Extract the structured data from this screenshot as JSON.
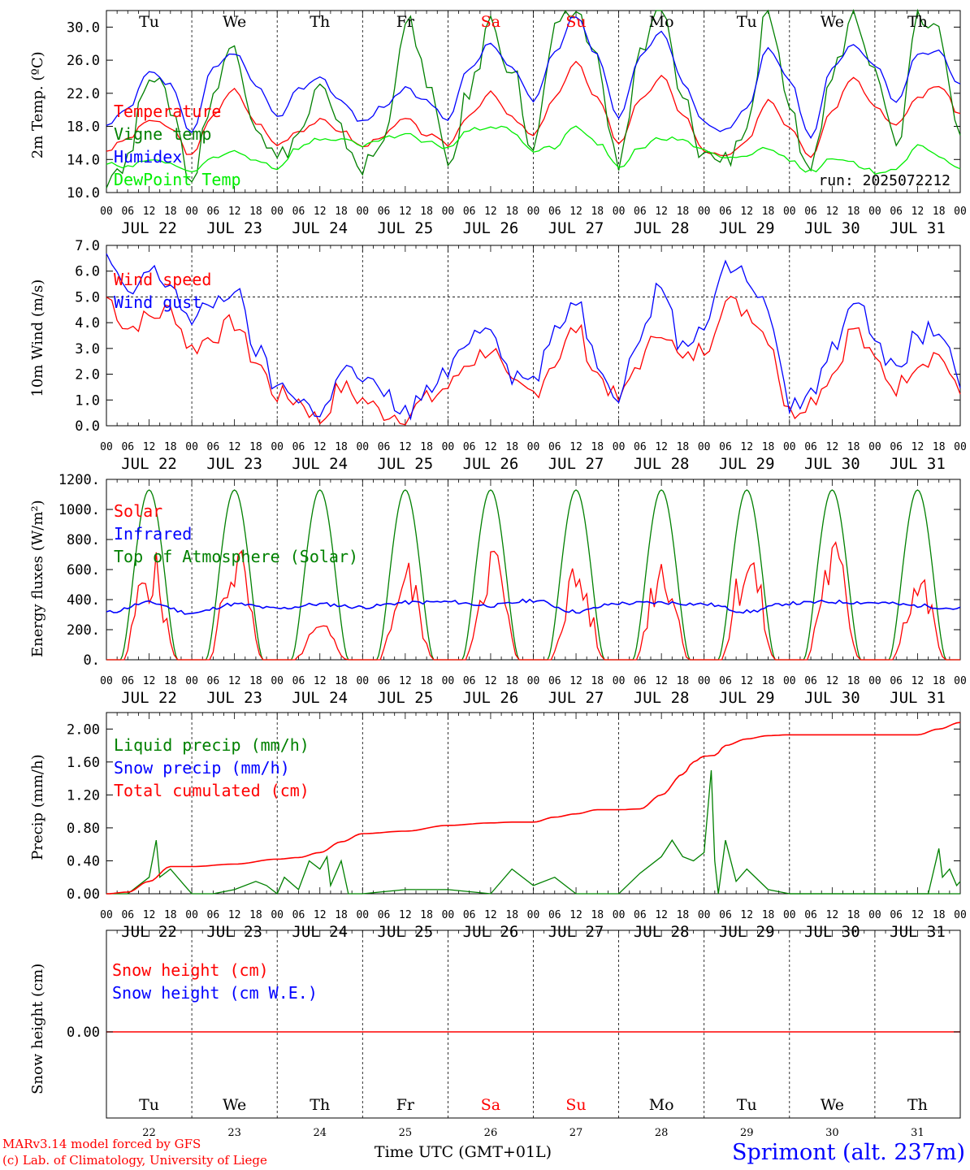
{
  "run_label": "run: 2025072212",
  "weekdays": [
    "Tu",
    "We",
    "Th",
    "Fr",
    "Sa",
    "Su",
    "Mo",
    "Tu",
    "We",
    "Th"
  ],
  "weekday_colors": [
    "#000000",
    "#000000",
    "#000000",
    "#000000",
    "#ff0000",
    "#ff0000",
    "#000000",
    "#000000",
    "#000000",
    "#000000"
  ],
  "date_labels": [
    "JUL 22",
    "JUL 23",
    "JUL 24",
    "JUL 25",
    "JUL 26",
    "JUL 27",
    "JUL 28",
    "JUL 29",
    "JUL 30",
    "JUL 31"
  ],
  "day_numbers": [
    "22",
    "23",
    "24",
    "25",
    "26",
    "27",
    "28",
    "29",
    "30",
    "31"
  ],
  "hour_labels": [
    "00",
    "06",
    "12",
    "18"
  ],
  "final_hour_label": "00",
  "footer": {
    "credit_line1": "MARv3.14 model forced by GFS",
    "credit_line2": "(c) Lab. of Climatology, University of Liege",
    "time_label": "Time UTC (GMT+01L)",
    "station": "Sprimont (alt. 237m)"
  },
  "chart_data": [
    {
      "type": "line",
      "ylabel": "2m Temp. (ºC)",
      "ylim": [
        10,
        32
      ],
      "yticks": [
        "10.0",
        "14.0",
        "18.0",
        "22.0",
        "26.0",
        "30.0"
      ],
      "ytick_values": [
        10,
        14,
        18,
        22,
        26,
        30
      ],
      "x_unit": "hours since JUL 22 00 UTC",
      "x": [
        0,
        6,
        12,
        18,
        24,
        30,
        36,
        42,
        48,
        54,
        60,
        66,
        72,
        78,
        84,
        90,
        96,
        102,
        108,
        114,
        120,
        126,
        132,
        138,
        144,
        150,
        156,
        162,
        168,
        174,
        180,
        186,
        192,
        198,
        204,
        210,
        216,
        222,
        228,
        234,
        240
      ],
      "series": [
        {
          "name": "Temperature",
          "color": "#ff0000",
          "values": [
            15.1,
            16.5,
            18.8,
            17.8,
            14.4,
            19.5,
            22.4,
            18.5,
            15.8,
            17.5,
            18.7,
            17.5,
            15.5,
            17.0,
            18.9,
            17.0,
            15.8,
            19.5,
            22.0,
            19.0,
            16.8,
            21.5,
            25.6,
            21.5,
            16.0,
            21.0,
            24.0,
            19.5,
            15.0,
            14.3,
            16.0,
            21.3,
            18.0,
            14.5,
            20.0,
            24.2,
            20.5,
            18.0,
            21.5,
            23.0,
            19.5
          ]
        },
        {
          "name": "Vigne temp",
          "color": "#008000",
          "values": [
            12.0,
            14.0,
            25.0,
            20.5,
            11.5,
            22.0,
            28.0,
            18.5,
            14.0,
            17.0,
            22.5,
            17.0,
            13.0,
            16.0,
            31.0,
            24.0,
            13.0,
            22.0,
            30.5,
            25.0,
            15.0,
            29.0,
            32.0,
            26.0,
            13.0,
            27.0,
            32.0,
            21.0,
            14.5,
            14.0,
            18.0,
            32.0,
            19.0,
            13.0,
            24.0,
            32.0,
            26.0,
            15.5,
            32.0,
            30.0,
            18.0
          ]
        },
        {
          "name": "Humidex",
          "color": "#0000ff",
          "values": [
            18.0,
            20.0,
            24.5,
            23.0,
            17.0,
            25.0,
            27.0,
            23.0,
            19.0,
            22.5,
            24.0,
            21.0,
            18.5,
            20.5,
            22.5,
            21.0,
            19.0,
            25.0,
            28.0,
            25.0,
            21.0,
            27.0,
            31.5,
            26.5,
            19.0,
            26.5,
            29.5,
            23.5,
            18.5,
            17.5,
            20.0,
            27.5,
            23.5,
            16.5,
            25.0,
            28.0,
            25.5,
            21.0,
            26.5,
            27.0,
            23.0
          ]
        },
        {
          "name": "DewPoint Temp",
          "color": "#00ee00",
          "values": [
            13.5,
            13.0,
            14.0,
            13.5,
            12.5,
            14.0,
            15.0,
            14.0,
            13.0,
            15.5,
            16.5,
            16.5,
            15.5,
            16.5,
            17.0,
            16.0,
            15.5,
            17.5,
            18.0,
            17.5,
            15.0,
            15.5,
            18.0,
            16.0,
            13.0,
            15.5,
            16.5,
            16.5,
            15.0,
            14.0,
            14.5,
            15.5,
            14.0,
            12.5,
            14.0,
            13.5,
            12.5,
            13.0,
            15.5,
            14.5,
            13.0
          ]
        }
      ]
    },
    {
      "type": "line",
      "ylabel": "10m Wind (m/s)",
      "ylim": [
        0,
        7
      ],
      "yticks": [
        "0.0",
        "1.0",
        "2.0",
        "3.0",
        "4.0",
        "5.0",
        "6.0",
        "7.0"
      ],
      "ytick_values": [
        0,
        1,
        2,
        3,
        4,
        5,
        6,
        7
      ],
      "reference_line": 5.0,
      "x_unit": "hours since JUL 22 00 UTC",
      "x": [
        0,
        6,
        12,
        18,
        24,
        30,
        36,
        42,
        48,
        54,
        60,
        66,
        72,
        78,
        84,
        90,
        96,
        102,
        108,
        114,
        120,
        126,
        132,
        138,
        144,
        150,
        156,
        162,
        168,
        174,
        180,
        186,
        192,
        198,
        204,
        210,
        216,
        222,
        228,
        234,
        240
      ],
      "series": [
        {
          "name": "Wind speed",
          "color": "#ff0000",
          "values": [
            5.0,
            3.8,
            4.2,
            4.5,
            3.0,
            3.5,
            4.0,
            2.5,
            1.2,
            1.0,
            0.2,
            1.5,
            1.0,
            0.5,
            0.4,
            1.0,
            1.5,
            2.5,
            3.0,
            1.5,
            1.3,
            2.5,
            3.8,
            2.0,
            1.0,
            2.5,
            3.8,
            2.5,
            3.0,
            4.8,
            4.5,
            3.5,
            0.5,
            1.0,
            2.0,
            3.8,
            2.5,
            1.5,
            2.5,
            2.8,
            1.2
          ]
        },
        {
          "name": "Wind gust",
          "color": "#0000ff",
          "values": [
            6.5,
            5.0,
            6.0,
            5.5,
            4.0,
            4.8,
            5.3,
            3.0,
            1.5,
            1.2,
            0.3,
            2.3,
            1.8,
            1.2,
            0.5,
            1.3,
            2.0,
            3.5,
            4.0,
            2.0,
            1.8,
            3.5,
            5.0,
            2.5,
            1.3,
            3.5,
            5.5,
            3.0,
            4.0,
            6.2,
            5.8,
            4.5,
            0.8,
            1.2,
            3.0,
            5.0,
            3.5,
            2.0,
            3.5,
            3.8,
            1.5
          ]
        }
      ]
    },
    {
      "type": "line",
      "ylabel": "Energy fluxes (W/m²)",
      "ylim": [
        0,
        1200
      ],
      "yticks": [
        "0.",
        "200.",
        "400.",
        "600.",
        "800.",
        "1000.",
        "1200."
      ],
      "ytick_values": [
        0,
        200,
        400,
        600,
        800,
        1000,
        1200
      ],
      "solar_peak_by_day": [
        780,
        830,
        250,
        690,
        840,
        700,
        800,
        830,
        850,
        640
      ],
      "series": [
        {
          "name": "Solar",
          "color": "#ff0000",
          "description_values": "daily peaks W/m²",
          "values": [
            780,
            830,
            250,
            690,
            840,
            700,
            800,
            830,
            850,
            640
          ]
        },
        {
          "name": "Infrared",
          "color": "#0000ff",
          "values": [
            315,
            380,
            310,
            370,
            340,
            370,
            350,
            380,
            385,
            360,
            395,
            320,
            375,
            380,
            370,
            320,
            375,
            385,
            380,
            360,
            340
          ]
        },
        {
          "name": "Top of Atmosphere (Solar)",
          "color": "#008000",
          "peak": 1130
        }
      ]
    },
    {
      "type": "line",
      "ylabel": "Precip (mm/h)",
      "ylim": [
        0,
        2.2
      ],
      "yticks": [
        "0.00",
        "0.40",
        "0.80",
        "1.20",
        "1.60",
        "2.00"
      ],
      "ytick_values": [
        0,
        0.4,
        0.8,
        1.2,
        1.6,
        2.0
      ],
      "x_unit": "hours since JUL 22 00 UTC",
      "series": [
        {
          "name": "Liquid precip (mm/h)",
          "color": "#008000",
          "x": [
            0,
            6,
            9,
            12,
            14,
            15,
            18,
            22,
            24,
            30,
            36,
            42,
            45,
            48,
            50,
            54,
            57,
            60,
            62,
            63,
            66,
            68,
            72,
            84,
            96,
            108,
            114,
            120,
            126,
            132,
            144,
            150,
            156,
            159,
            162,
            165,
            168,
            170,
            171,
            172,
            174,
            177,
            180,
            186,
            192,
            240,
            231,
            234,
            235,
            237,
            239,
            240
          ],
          "values": [
            0,
            0,
            0.1,
            0.2,
            0.65,
            0.2,
            0.3,
            0.1,
            0,
            0,
            0.05,
            0.15,
            0.1,
            0,
            0.2,
            0.05,
            0.4,
            0.3,
            0.45,
            0.1,
            0.4,
            0,
            0,
            0.05,
            0.05,
            0,
            0.3,
            0.1,
            0.2,
            0,
            0,
            0.25,
            0.45,
            0.65,
            0.45,
            0.4,
            0.5,
            1.5,
            0.4,
            0,
            0.65,
            0.15,
            0.3,
            0.05,
            0,
            0,
            0,
            0.55,
            0.2,
            0.3,
            0.1,
            0.15
          ]
        },
        {
          "name": "Snow precip (mm/h)",
          "color": "#0000ff",
          "values": [
            0
          ]
        },
        {
          "name": "Total cumulated (cm)",
          "color": "#ff0000",
          "x": [
            0,
            6,
            12,
            18,
            24,
            36,
            48,
            54,
            60,
            66,
            72,
            84,
            96,
            108,
            114,
            120,
            126,
            132,
            138,
            144,
            150,
            156,
            162,
            165,
            168,
            171,
            174,
            180,
            186,
            192,
            216,
            228,
            234,
            240
          ],
          "values": [
            0,
            0.02,
            0.15,
            0.33,
            0.33,
            0.36,
            0.42,
            0.44,
            0.5,
            0.63,
            0.73,
            0.76,
            0.83,
            0.86,
            0.87,
            0.87,
            0.93,
            0.97,
            1.02,
            1.02,
            1.03,
            1.2,
            1.45,
            1.6,
            1.67,
            1.68,
            1.8,
            1.88,
            1.92,
            1.93,
            1.93,
            1.93,
            2.0,
            2.08
          ]
        }
      ]
    },
    {
      "type": "line",
      "ylabel": "Snow height (cm)",
      "yticks": [
        "0.00"
      ],
      "ytick_values": [
        0
      ],
      "series": [
        {
          "name": "Snow height (cm)",
          "color": "#ff0000",
          "values": [
            0
          ]
        },
        {
          "name": "Snow height (cm W.E.)",
          "color": "#0000ff",
          "values": [
            0
          ]
        }
      ]
    }
  ]
}
